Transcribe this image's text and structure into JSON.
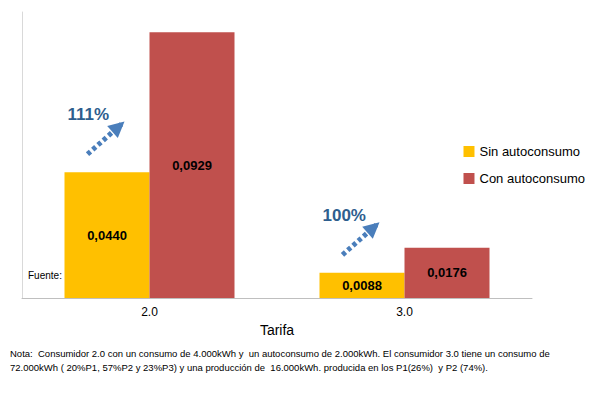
{
  "chart_data": {
    "type": "bar",
    "x_label": "Tarifa",
    "categories": [
      "2.0",
      "3.0"
    ],
    "series": [
      {
        "name": "Sin autoconsumo",
        "color": "#FFC000",
        "values": [
          0.044,
          0.0088
        ],
        "value_labels": [
          "0,0440",
          "0,0088"
        ]
      },
      {
        "name": "Con autoconsumo",
        "color": "#C0504D",
        "values": [
          0.0929,
          0.0176
        ],
        "value_labels": [
          "0,0929",
          "0,0176"
        ]
      }
    ],
    "ylim": [
      0,
      0.1
    ],
    "grid": false,
    "legend": "right",
    "data_labels": true,
    "tick_labels": "x",
    "annotations": [
      {
        "text": "111%",
        "category": "2.0"
      },
      {
        "text": "100%",
        "category": "3.0"
      }
    ],
    "source": "Fuente:  UNEF",
    "note": "Nota:  Consumidor 2.0 con un consumo de 4.000kWh y  un autoconsumo de 2.000kWh. El consumidor 3.0 tiene un consumo de 72.000kWh ( 20%P1, 57%P2 y 23%P3) y una producción de  16.000kWh. producida en los P1(26%)  y P2 (74%)."
  }
}
